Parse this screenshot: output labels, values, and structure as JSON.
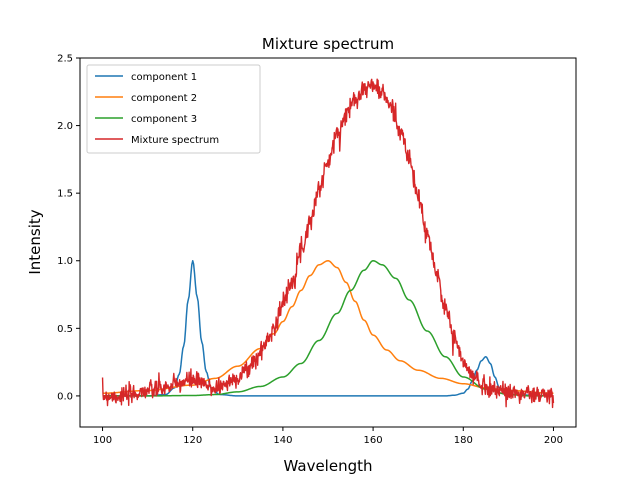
{
  "chart_data": {
    "type": "line",
    "title": "Mixture spectrum",
    "xlabel": "Wavelength",
    "ylabel": "Intensity",
    "xlim": [
      95,
      205
    ],
    "ylim": [
      -0.23,
      2.5
    ],
    "xticks": [
      100,
      120,
      140,
      160,
      180,
      200
    ],
    "xtick_labels": [
      "100",
      "120",
      "140",
      "160",
      "180",
      "200"
    ],
    "yticks": [
      0.0,
      0.5,
      1.0,
      1.5,
      2.0,
      2.5
    ],
    "ytick_labels": [
      "0.0",
      "0.5",
      "1.0",
      "1.5",
      "2.0",
      "2.5"
    ],
    "grid": false,
    "legend_position": "upper-left",
    "series": [
      {
        "name": "component 1",
        "color": "#1f77b4",
        "x": [
          100,
          110,
          114,
          116,
          117,
          118,
          119,
          120,
          121,
          122,
          123,
          124,
          126,
          130,
          140,
          150,
          160,
          170,
          176,
          178,
          180,
          181,
          182,
          183,
          184,
          185,
          186,
          187,
          188,
          190,
          200
        ],
        "y": [
          0,
          0,
          0.01,
          0.06,
          0.16,
          0.37,
          0.71,
          1.0,
          0.73,
          0.4,
          0.18,
          0.06,
          0.01,
          0,
          0,
          0,
          0,
          0,
          0,
          0.005,
          0.02,
          0.05,
          0.11,
          0.19,
          0.26,
          0.29,
          0.24,
          0.14,
          0.06,
          0.01,
          0
        ]
      },
      {
        "name": "component 2",
        "color": "#ff7f0e",
        "x": [
          100,
          110,
          120,
          125,
          130,
          135,
          138,
          140,
          142,
          144,
          146,
          148,
          150,
          152,
          154,
          156,
          158,
          160,
          163,
          166,
          170,
          175,
          180,
          185,
          190,
          200
        ],
        "y": [
          0.02,
          0.04,
          0.08,
          0.13,
          0.22,
          0.35,
          0.46,
          0.55,
          0.66,
          0.78,
          0.89,
          0.97,
          1.0,
          0.95,
          0.84,
          0.7,
          0.56,
          0.45,
          0.34,
          0.26,
          0.19,
          0.13,
          0.09,
          0.06,
          0.04,
          0.02
        ]
      },
      {
        "name": "component 3",
        "color": "#2ca02c",
        "x": [
          100,
          110,
          120,
          125,
          130,
          135,
          140,
          144,
          148,
          152,
          155,
          158,
          160,
          162,
          165,
          168,
          172,
          176,
          180,
          185,
          190,
          195,
          200
        ],
        "y": [
          0,
          0,
          0.003,
          0.01,
          0.03,
          0.07,
          0.14,
          0.24,
          0.41,
          0.61,
          0.78,
          0.93,
          1.0,
          0.97,
          0.87,
          0.71,
          0.48,
          0.29,
          0.14,
          0.05,
          0.01,
          0,
          0
        ]
      },
      {
        "name": "Mixture spectrum",
        "color": "#d62728",
        "noisy": true,
        "x": [
          100,
          105,
          110,
          114,
          116,
          118,
          120,
          122,
          124,
          126,
          128,
          130,
          132,
          134,
          136,
          138,
          140,
          142,
          144,
          146,
          148,
          150,
          152,
          154,
          156,
          158,
          160,
          162,
          164,
          166,
          168,
          170,
          172,
          174,
          176,
          178,
          180,
          182,
          184,
          186,
          188,
          190,
          195,
          200
        ],
        "y": [
          0.0,
          0.0,
          0.04,
          0.06,
          0.08,
          0.1,
          0.12,
          0.09,
          0.06,
          0.07,
          0.1,
          0.14,
          0.19,
          0.27,
          0.38,
          0.51,
          0.68,
          0.86,
          1.07,
          1.29,
          1.53,
          1.73,
          1.93,
          2.08,
          2.21,
          2.27,
          2.3,
          2.24,
          2.14,
          1.97,
          1.75,
          1.47,
          1.19,
          0.91,
          0.66,
          0.43,
          0.25,
          0.15,
          0.09,
          0.06,
          0.04,
          0.03,
          0.01,
          0.0
        ]
      }
    ]
  }
}
